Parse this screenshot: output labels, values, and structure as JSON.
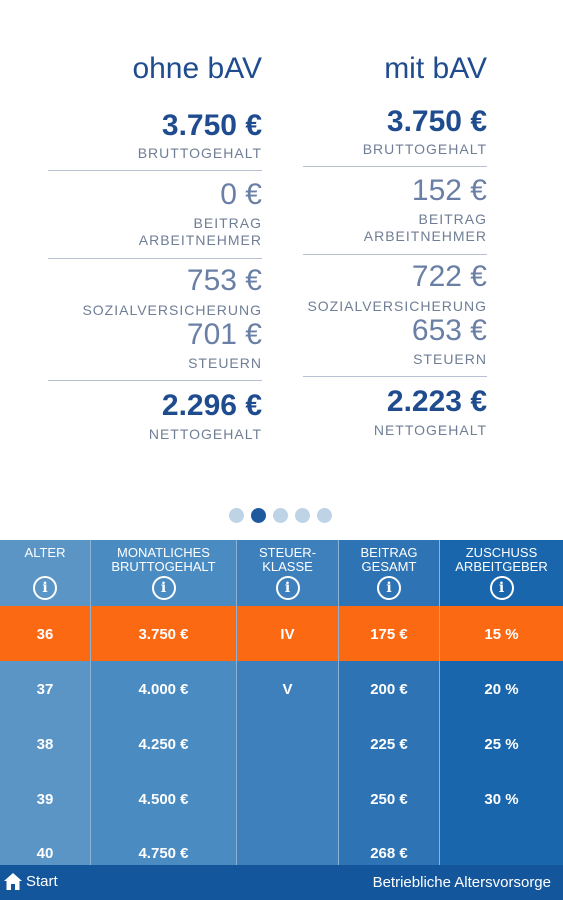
{
  "compare": {
    "left": {
      "title": "ohne bAV",
      "gross": "3.750 €",
      "gross_label": "BRUTTOGEHALT",
      "contribution": "0 €",
      "contribution_label_1": "BEITRAG",
      "contribution_label_2": "ARBEITNEHMER",
      "social": "753 €",
      "social_label": "SOZIALVERSICHERUNG",
      "tax": "701 €",
      "tax_label": "STEUERN",
      "net": "2.296 €",
      "net_label": "NETTOGEHALT"
    },
    "right": {
      "title": "mit bAV",
      "gross": "3.750 €",
      "gross_label": "BRUTTOGEHALT",
      "contribution": "152 €",
      "contribution_label_1": "BEITRAG",
      "contribution_label_2": "ARBEITNEHMER",
      "social": "722 €",
      "social_label": "SOZIALVERSICHERUNG",
      "tax": "653 €",
      "tax_label": "STEUERN",
      "net": "2.223 €",
      "net_label": "NETTOGEHALT"
    }
  },
  "pager": {
    "count": 5,
    "active_index": 1
  },
  "table": {
    "headers": [
      "ALTER",
      "MONATLICHES\nBRUTTOGEHALT",
      "STEUER-\nKLASSE",
      "BEITRAG\nGESAMT",
      "ZUSCHUSS\nARBEITGEBER"
    ],
    "info_glyph": "i",
    "ages": [
      "36",
      "37",
      "38",
      "39",
      "40"
    ],
    "salaries": [
      "3.750 €",
      "4.000 €",
      "4.250 €",
      "4.500 €",
      "4.750 €"
    ],
    "tax_classes": [
      "IV",
      "V"
    ],
    "contributions": [
      "175 €",
      "200 €",
      "225 €",
      "250 €",
      "268 €"
    ],
    "subsidies": [
      "15 %",
      "20 %",
      "25 %",
      "30 %"
    ],
    "selected_row": 0
  },
  "bottom_bar": {
    "start_label": "Start",
    "title": "Betriebliche Altersvorsorge",
    "icon": "home-icon"
  }
}
